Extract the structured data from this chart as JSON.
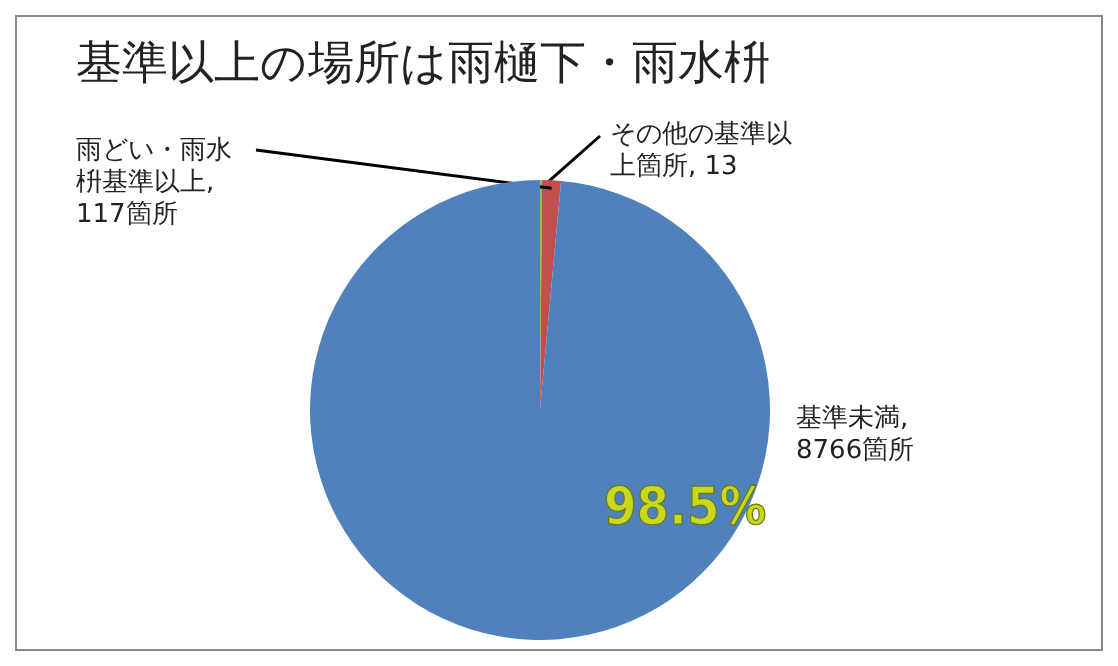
{
  "chart_data": {
    "type": "pie",
    "title": "基準以上の場所は雨樋下・雨水枡",
    "categories": [
      "その他の基準以上箇所, 13",
      "雨どい・雨水枡基準以上, 117箇所",
      "基準未満, 8766箇所"
    ],
    "values": [
      13,
      117,
      8766
    ],
    "colors": [
      "#9bbb59",
      "#c0504d",
      "#4f81bd"
    ],
    "annotations": [
      "98.5%"
    ]
  }
}
